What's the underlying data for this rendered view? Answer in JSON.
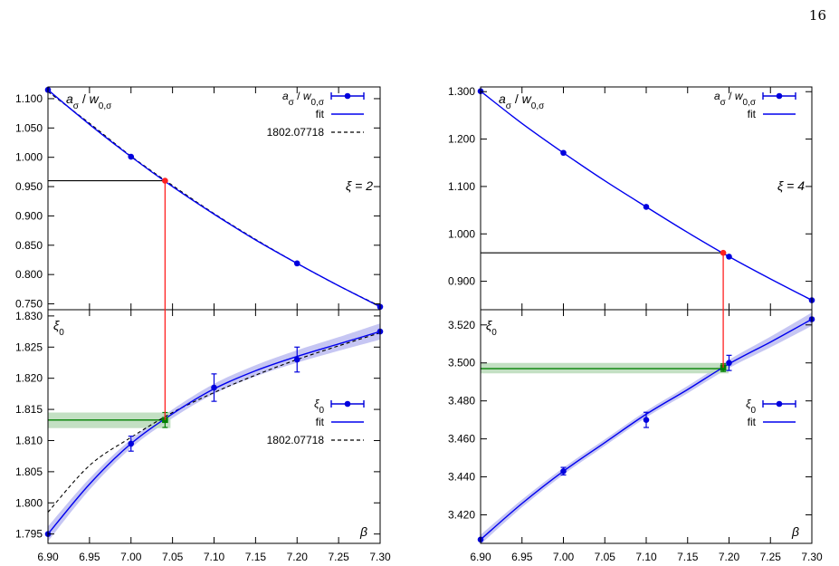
{
  "page_number": "16",
  "colors": {
    "points": "#0000dd",
    "fit": "#0000ee",
    "band": "#b8b8f0",
    "reference": "#000000",
    "target_line": "#000000",
    "intersection_point": "#ff2020",
    "intersection_line": "#ff2020",
    "xi0_band": "#b8dab8",
    "xi0_line": "#008000"
  },
  "chart_data": [
    {
      "type": "line",
      "panel": "left-top",
      "title": "a_σ / w_{0,σ}",
      "title_parts": [
        "a",
        "σ",
        " / ",
        "w",
        "0,σ"
      ],
      "annotation": "ξ = 2",
      "xlim": [
        6.9,
        7.3
      ],
      "ylim": [
        0.74,
        1.12
      ],
      "yticks": [
        "0.750",
        "0.800",
        "0.850",
        "0.900",
        "0.950",
        "1.000",
        "1.050",
        "1.100"
      ],
      "legend_position": "top-right",
      "legend": [
        "a_σ / w_{0,σ}",
        "fit",
        "1802.07718"
      ],
      "points": {
        "x": [
          6.9,
          7.0,
          7.2,
          7.3
        ],
        "y": [
          1.115,
          1.001,
          0.819,
          0.745
        ]
      },
      "intersection": {
        "x": 7.041,
        "y": 0.96
      },
      "fit": {
        "x": [
          6.9,
          6.95,
          7.0,
          7.05,
          7.1,
          7.15,
          7.2,
          7.25,
          7.3
        ],
        "y": [
          1.115,
          1.056,
          1.001,
          0.95,
          0.903,
          0.859,
          0.819,
          0.781,
          0.745
        ]
      },
      "reference": {
        "x": [
          6.9,
          6.95,
          7.0,
          7.05,
          7.1,
          7.15,
          7.2,
          7.25,
          7.3
        ],
        "y": [
          1.112,
          1.058,
          1.002,
          0.952,
          0.904,
          0.86,
          0.819,
          0.781,
          0.746
        ]
      }
    },
    {
      "type": "line",
      "panel": "left-bottom",
      "title": "ξ_0",
      "xlabel": "β",
      "xlim": [
        6.9,
        7.3
      ],
      "ylim": [
        1.7935,
        1.831
      ],
      "xticks": [
        "6.90",
        "6.95",
        "7.00",
        "7.05",
        "7.10",
        "7.15",
        "7.20",
        "7.25",
        "7.30"
      ],
      "yticks": [
        "1.795",
        "1.800",
        "1.805",
        "1.810",
        "1.815",
        "1.820",
        "1.825",
        "1.830"
      ],
      "legend_position": "right",
      "legend": [
        "ξ_0",
        "fit",
        "1802.07718"
      ],
      "points": {
        "x": [
          6.9,
          7.0,
          7.1,
          7.2,
          7.3
        ],
        "y": [
          1.795,
          1.8095,
          1.8185,
          1.823,
          1.8275
        ],
        "err": [
          0.0,
          0.0012,
          0.0022,
          0.002,
          0.0
        ]
      },
      "intersection": {
        "x": 7.041,
        "y": 1.8133,
        "err": 0.0012
      },
      "xi0_band": [
        1.812,
        1.8145
      ],
      "xi0_value": 1.8133,
      "fit": {
        "x": [
          6.9,
          6.95,
          7.0,
          7.05,
          7.1,
          7.15,
          7.2,
          7.25,
          7.3
        ],
        "y": [
          1.795,
          1.803,
          1.8095,
          1.8143,
          1.8183,
          1.8212,
          1.8235,
          1.8255,
          1.8275
        ]
      },
      "fit_band_halfwidth": [
        0.0012,
        0.0009,
        0.0007,
        0.0007,
        0.0008,
        0.0009,
        0.001,
        0.0011,
        0.0013
      ],
      "reference": {
        "x": [
          6.9,
          6.95,
          7.0,
          7.05,
          7.1,
          7.15,
          7.2,
          7.25,
          7.3
        ],
        "y": [
          1.7985,
          1.806,
          1.8105,
          1.8145,
          1.8177,
          1.8205,
          1.823,
          1.8252,
          1.8273
        ]
      }
    },
    {
      "type": "line",
      "panel": "right-top",
      "title": "a_σ / w_{0,σ}",
      "title_parts": [
        "a",
        "σ",
        " / ",
        "w",
        "0,σ"
      ],
      "annotation": "ξ = 4",
      "xlim": [
        6.9,
        7.3
      ],
      "ylim": [
        0.84,
        1.31
      ],
      "yticks": [
        "0.900",
        "1.000",
        "1.100",
        "1.200",
        "1.300"
      ],
      "legend_position": "top-right",
      "legend": [
        "a_σ / w_{0,σ}",
        "fit"
      ],
      "points": {
        "x": [
          6.9,
          7.0,
          7.1,
          7.2,
          7.3
        ],
        "y": [
          1.301,
          1.171,
          1.057,
          0.952,
          0.86
        ]
      },
      "intersection": {
        "x": 7.193,
        "y": 0.96
      },
      "fit": {
        "x": [
          6.9,
          6.95,
          7.0,
          7.05,
          7.1,
          7.15,
          7.2,
          7.25,
          7.3
        ],
        "y": [
          1.301,
          1.233,
          1.171,
          1.112,
          1.057,
          1.003,
          0.952,
          0.905,
          0.86
        ]
      }
    },
    {
      "type": "line",
      "panel": "right-bottom",
      "title": "ξ_0",
      "xlabel": "β",
      "xlim": [
        6.9,
        7.3
      ],
      "ylim": [
        3.405,
        3.528
      ],
      "xticks": [
        "6.90",
        "6.95",
        "7.00",
        "7.05",
        "7.10",
        "7.15",
        "7.20",
        "7.25",
        "7.30"
      ],
      "yticks": [
        "3.420",
        "3.440",
        "3.460",
        "3.480",
        "3.500",
        "3.520"
      ],
      "legend_position": "right",
      "legend": [
        "ξ_0",
        "fit"
      ],
      "points": {
        "x": [
          6.9,
          7.0,
          7.1,
          7.2,
          7.3
        ],
        "y": [
          3.407,
          3.443,
          3.47,
          3.5,
          3.523
        ],
        "err": [
          0.0,
          0.002,
          0.004,
          0.004,
          0.0
        ]
      },
      "intersection": {
        "x": 7.193,
        "y": 3.4975,
        "err": 0.002
      },
      "xi0_band": [
        3.4945,
        3.5
      ],
      "xi0_value": 3.497,
      "fit": {
        "x": [
          6.9,
          6.95,
          7.0,
          7.05,
          7.1,
          7.15,
          7.2,
          7.25,
          7.3
        ],
        "y": [
          3.407,
          3.426,
          3.443,
          3.458,
          3.473,
          3.486,
          3.4995,
          3.511,
          3.523
        ]
      },
      "fit_band_halfwidth": [
        0.0025,
        0.002,
        0.0018,
        0.0017,
        0.0017,
        0.0019,
        0.0022,
        0.0028,
        0.0035
      ]
    }
  ]
}
